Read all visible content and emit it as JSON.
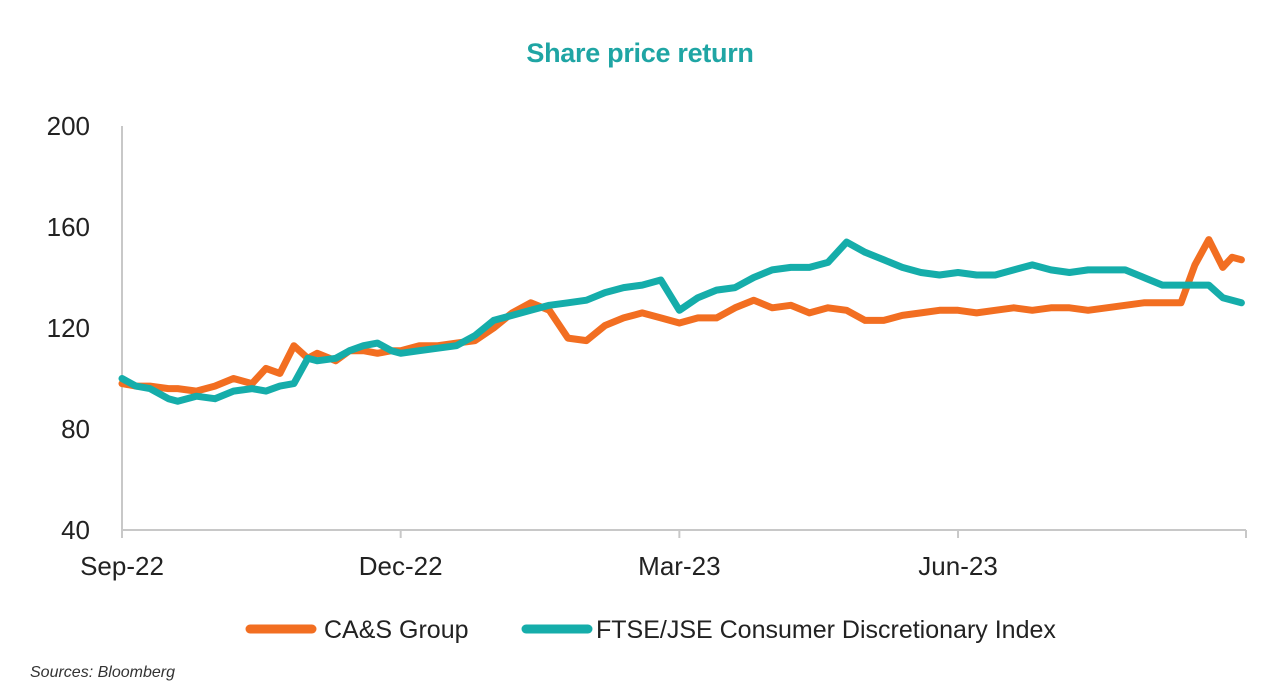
{
  "colors": {
    "title": "#1FA5A4",
    "cas": "#F26E21",
    "ftse": "#15ADAA",
    "axis": "#C8C8C8"
  },
  "chart_data": {
    "type": "line",
    "title": "Share price return",
    "xlabel": "",
    "ylabel": "",
    "ylim": [
      40,
      200
    ],
    "yticks": [
      "40",
      "80",
      "120",
      "160",
      "200"
    ],
    "xlim": [
      0,
      12.1
    ],
    "xticks": [
      {
        "pos": 0,
        "label": "Sep-22"
      },
      {
        "pos": 3,
        "label": "Dec-22"
      },
      {
        "pos": 6,
        "label": "Mar-23"
      },
      {
        "pos": 9,
        "label": "Jun-23"
      }
    ],
    "legend_position": "bottom",
    "grid": false,
    "series": [
      {
        "name": "CA&S Group",
        "color_key": "cas",
        "x": [
          0,
          0.15,
          0.3,
          0.5,
          0.6,
          0.8,
          1.0,
          1.2,
          1.4,
          1.55,
          1.7,
          1.85,
          2.0,
          2.1,
          2.3,
          2.45,
          2.6,
          2.75,
          2.9,
          3.0,
          3.2,
          3.4,
          3.6,
          3.8,
          4.0,
          4.2,
          4.4,
          4.6,
          4.8,
          5.0,
          5.2,
          5.4,
          5.6,
          5.8,
          6.0,
          6.2,
          6.4,
          6.6,
          6.8,
          7.0,
          7.2,
          7.4,
          7.6,
          7.8,
          8.0,
          8.2,
          8.4,
          8.6,
          8.8,
          9.0,
          9.2,
          9.4,
          9.6,
          9.8,
          10.0,
          10.2,
          10.4,
          10.6,
          10.8,
          11.0,
          11.2,
          11.4,
          11.55,
          11.7,
          11.85,
          11.95,
          12.05
        ],
        "y": [
          98,
          97,
          97,
          96,
          96,
          95,
          97,
          100,
          98,
          104,
          102,
          113,
          108,
          110,
          107,
          111,
          111,
          110,
          111,
          111,
          113,
          113,
          114,
          115,
          120,
          126,
          130,
          127,
          116,
          115,
          121,
          124,
          126,
          124,
          122,
          124,
          124,
          128,
          131,
          128,
          129,
          126,
          128,
          127,
          123,
          123,
          125,
          126,
          127,
          127,
          126,
          127,
          128,
          127,
          128,
          128,
          127,
          128,
          129,
          130,
          130,
          130,
          145,
          155,
          144,
          148,
          147
        ]
      },
      {
        "name": "FTSE/JSE Consumer Discretionary Index",
        "color_key": "ftse",
        "x": [
          0,
          0.15,
          0.3,
          0.5,
          0.6,
          0.8,
          1.0,
          1.2,
          1.4,
          1.55,
          1.7,
          1.85,
          2.0,
          2.1,
          2.3,
          2.45,
          2.6,
          2.75,
          2.9,
          3.0,
          3.2,
          3.4,
          3.6,
          3.8,
          4.0,
          4.2,
          4.4,
          4.6,
          4.8,
          5.0,
          5.2,
          5.4,
          5.6,
          5.8,
          6.0,
          6.2,
          6.4,
          6.6,
          6.8,
          7.0,
          7.2,
          7.4,
          7.6,
          7.8,
          8.0,
          8.2,
          8.4,
          8.6,
          8.8,
          9.0,
          9.2,
          9.4,
          9.6,
          9.8,
          10.0,
          10.2,
          10.4,
          10.6,
          10.8,
          11.0,
          11.2,
          11.4,
          11.55,
          11.7,
          11.85,
          11.95,
          12.05
        ],
        "y": [
          100,
          97,
          96,
          92,
          91,
          93,
          92,
          95,
          96,
          95,
          97,
          98,
          108,
          107,
          108,
          111,
          113,
          114,
          111,
          110,
          111,
          112,
          113,
          117,
          123,
          125,
          127,
          129,
          130,
          131,
          134,
          136,
          137,
          139,
          127,
          132,
          135,
          136,
          140,
          143,
          144,
          144,
          146,
          154,
          150,
          147,
          144,
          142,
          141,
          142,
          141,
          141,
          143,
          145,
          143,
          142,
          143,
          143,
          143,
          140,
          137,
          137,
          137,
          137,
          132,
          131,
          130
        ]
      }
    ]
  },
  "source_note": "Sources: Bloomberg"
}
